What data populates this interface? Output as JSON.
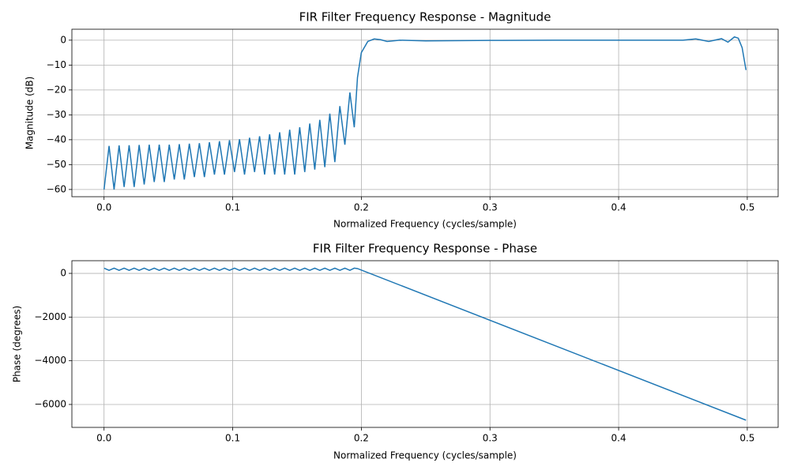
{
  "chart_data": [
    {
      "type": "line",
      "title": "FIR Filter Frequency Response - Magnitude",
      "xlabel": "Normalized Frequency (cycles/sample)",
      "ylabel": "Magnitude (dB)",
      "color": "#1f77b4",
      "grid": true,
      "xlim": [
        -0.025,
        0.524
      ],
      "ylim": [
        -62.9,
        4.4
      ],
      "xticks": [
        {
          "value": 0,
          "label": "0.0"
        },
        0.1,
        0.2,
        0.3,
        0.4,
        0.5
      ],
      "yticks": [
        0,
        {
          "value": -10,
          "label": "−10"
        },
        {
          "value": -20,
          "label": "−20"
        },
        {
          "value": -30,
          "label": "−30"
        },
        {
          "value": -40,
          "label": "−40"
        },
        {
          "value": -50,
          "label": "−50"
        },
        {
          "value": -60,
          "label": "−60"
        }
      ],
      "x": [
        0,
        0.0039,
        0.0078,
        0.0117,
        0.0156,
        0.0195,
        0.0234,
        0.0273,
        0.0312,
        0.0351,
        0.039,
        0.0429,
        0.0468,
        0.0507,
        0.0546,
        0.0585,
        0.0624,
        0.0663,
        0.0702,
        0.0741,
        0.078,
        0.0819,
        0.0858,
        0.0897,
        0.0936,
        0.0975,
        0.1014,
        0.1053,
        0.1092,
        0.1131,
        0.117,
        0.1209,
        0.1248,
        0.1287,
        0.1326,
        0.1365,
        0.1404,
        0.1443,
        0.1482,
        0.1521,
        0.156,
        0.1599,
        0.1638,
        0.1677,
        0.1716,
        0.1755,
        0.1794,
        0.1833,
        0.1872,
        0.1911,
        0.1945,
        0.197,
        0.2,
        0.205,
        0.21,
        0.215,
        0.22,
        0.23,
        0.25,
        0.3,
        0.35,
        0.4,
        0.45,
        0.46,
        0.47,
        0.48,
        0.485,
        0.49,
        0.493,
        0.496,
        0.499
      ],
      "values": [
        -60,
        -42.5,
        -60,
        -42.3,
        -59,
        -42.2,
        -59,
        -42.1,
        -58,
        -42,
        -57,
        -42,
        -57,
        -42,
        -56,
        -41.8,
        -56,
        -41.6,
        -55,
        -41.4,
        -55,
        -41,
        -54,
        -40.6,
        -54,
        -40.2,
        -53,
        -39.8,
        -54,
        -39.2,
        -53,
        -38.6,
        -54,
        -37.8,
        -54,
        -37,
        -54,
        -36,
        -54,
        -35,
        -53,
        -33.5,
        -52,
        -32,
        -51,
        -29.5,
        -49,
        -26.5,
        -42,
        -21,
        -35,
        -15,
        -5,
        -0.5,
        0.5,
        0.2,
        -0.5,
        0,
        -0.3,
        -0.1,
        0,
        0,
        0,
        0.5,
        -0.5,
        0.6,
        -0.8,
        1.3,
        0.8,
        -3,
        -12
      ]
    },
    {
      "type": "line",
      "title": "FIR Filter Frequency Response - Phase",
      "xlabel": "Normalized Frequency (cycles/sample)",
      "ylabel": "Phase (degrees)",
      "color": "#1f77b4",
      "grid": true,
      "xlim": [
        -0.025,
        0.524
      ],
      "ylim": [
        -7050,
        580
      ],
      "xticks": [
        {
          "value": 0,
          "label": "0.0"
        },
        0.1,
        0.2,
        0.3,
        0.4,
        0.5
      ],
      "yticks": [
        0,
        {
          "value": -2000,
          "label": "−2000"
        },
        {
          "value": -4000,
          "label": "−4000"
        },
        {
          "value": -6000,
          "label": "−6000"
        }
      ],
      "x": [
        0,
        0.0039,
        0.0078,
        0.0117,
        0.0156,
        0.0195,
        0.0234,
        0.0273,
        0.0312,
        0.0351,
        0.039,
        0.0429,
        0.0468,
        0.0507,
        0.0546,
        0.0585,
        0.0624,
        0.0663,
        0.0702,
        0.0741,
        0.078,
        0.0819,
        0.0858,
        0.0897,
        0.0936,
        0.0975,
        0.1014,
        0.1053,
        0.1092,
        0.1131,
        0.117,
        0.1209,
        0.1248,
        0.1287,
        0.1326,
        0.1365,
        0.1404,
        0.1443,
        0.1482,
        0.1521,
        0.156,
        0.1599,
        0.1638,
        0.1677,
        0.1716,
        0.1755,
        0.1794,
        0.1833,
        0.1872,
        0.1911,
        0.1945,
        0.197,
        0.499
      ],
      "values": [
        240,
        140,
        240,
        140,
        240,
        140,
        240,
        140,
        240,
        140,
        240,
        140,
        240,
        140,
        240,
        140,
        240,
        140,
        240,
        140,
        240,
        140,
        240,
        140,
        240,
        140,
        240,
        140,
        240,
        140,
        240,
        140,
        240,
        140,
        240,
        140,
        240,
        140,
        240,
        140,
        240,
        140,
        240,
        140,
        240,
        140,
        240,
        140,
        240,
        140,
        240,
        220,
        -6720
      ]
    }
  ]
}
